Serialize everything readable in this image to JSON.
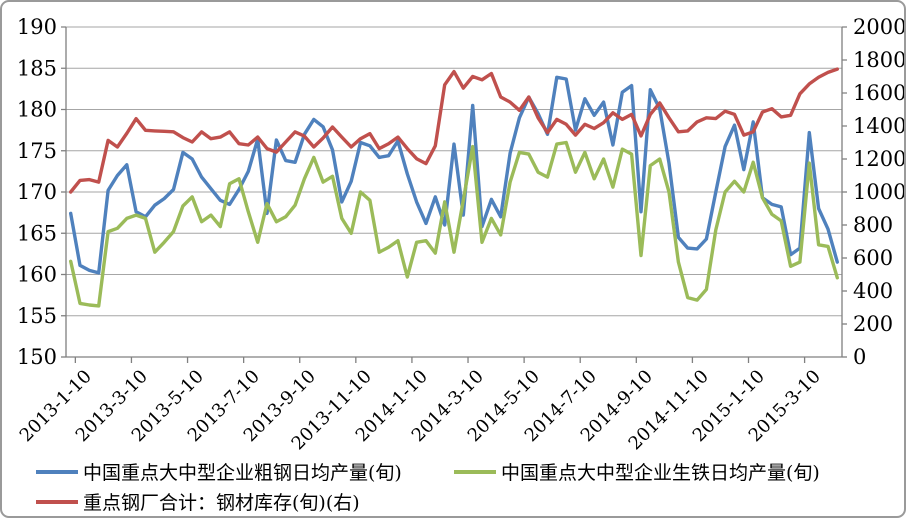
{
  "chart_data": {
    "type": "line",
    "title": "",
    "grid": true,
    "legend_position": "bottom",
    "x_label_interval": 6,
    "left_axis": {
      "min": 150,
      "max": 190,
      "step": 5,
      "ticks": [
        "150",
        "155",
        "160",
        "165",
        "170",
        "175",
        "180",
        "185",
        "190"
      ]
    },
    "right_axis": {
      "min": 0,
      "max": 2000,
      "step": 200,
      "ticks": [
        "0",
        "200",
        "400",
        "600",
        "800",
        "1000",
        "1200",
        "1400",
        "1600",
        "1800",
        "2000"
      ]
    },
    "visible_x_labels": [
      "2013-1-10",
      "2013-3-10",
      "2013-5-10",
      "2013-7-10",
      "2013-9-10",
      "2013-11-10",
      "2014-1-10",
      "2014-3-10",
      "2014-5-10",
      "2014-7-10",
      "2014-9-10",
      "2014-11-10",
      "2015-1-10",
      "2015-3-10"
    ],
    "categories": [
      "2013-1-10",
      "2013-1-20",
      "2013-1-31",
      "2013-2-10",
      "2013-2-20",
      "2013-2-28",
      "2013-3-10",
      "2013-3-20",
      "2013-3-31",
      "2013-4-10",
      "2013-4-20",
      "2013-4-30",
      "2013-5-10",
      "2013-5-20",
      "2013-5-31",
      "2013-6-10",
      "2013-6-20",
      "2013-6-30",
      "2013-7-10",
      "2013-7-20",
      "2013-7-31",
      "2013-8-10",
      "2013-8-20",
      "2013-8-31",
      "2013-9-10",
      "2013-9-20",
      "2013-9-30",
      "2013-10-10",
      "2013-10-20",
      "2013-10-31",
      "2013-11-10",
      "2013-11-20",
      "2013-11-30",
      "2013-12-10",
      "2013-12-20",
      "2013-12-31",
      "2014-1-10",
      "2014-1-20",
      "2014-1-31",
      "2014-2-10",
      "2014-2-20",
      "2014-2-28",
      "2014-3-10",
      "2014-3-20",
      "2014-3-31",
      "2014-4-10",
      "2014-4-20",
      "2014-4-30",
      "2014-5-10",
      "2014-5-20",
      "2014-5-31",
      "2014-6-10",
      "2014-6-20",
      "2014-6-30",
      "2014-7-10",
      "2014-7-20",
      "2014-7-31",
      "2014-8-10",
      "2014-8-20",
      "2014-8-31",
      "2014-9-10",
      "2014-9-20",
      "2014-9-30",
      "2014-10-10",
      "2014-10-20",
      "2014-10-31",
      "2014-11-10",
      "2014-11-20",
      "2014-11-30",
      "2014-12-10",
      "2014-12-20",
      "2014-12-31",
      "2015-1-10",
      "2015-1-20",
      "2015-1-31",
      "2015-2-10",
      "2015-2-20",
      "2015-2-28",
      "2015-3-10",
      "2015-3-20",
      "2015-3-31",
      "2015-4-10",
      "2015-4-20"
    ],
    "series": [
      {
        "name": "中国重点大中型企业粗钢日均产量(旬)",
        "axis": "left",
        "color": "#4F81BD",
        "values": [
          167.4,
          161.1,
          160.5,
          160.2,
          170.2,
          172.0,
          173.3,
          167.6,
          167.0,
          168.4,
          169.2,
          170.3,
          174.8,
          174.0,
          171.8,
          170.4,
          169.0,
          168.5,
          170.3,
          172.5,
          176.4,
          167.4,
          176.3,
          173.8,
          173.6,
          177.0,
          178.8,
          177.9,
          175.1,
          168.8,
          171.3,
          176.0,
          175.6,
          174.2,
          174.4,
          176.2,
          172.2,
          168.8,
          166.2,
          169.4,
          166.0,
          175.8,
          167.2,
          180.5,
          165.8,
          169.1,
          167.0,
          174.7,
          179.0,
          181.5,
          179.5,
          177.0,
          183.9,
          183.7,
          177.5,
          181.3,
          179.3,
          180.9,
          175.7,
          182.1,
          182.9,
          167.6,
          182.4,
          180.1,
          173.5,
          164.5,
          163.2,
          163.1,
          164.3,
          170.0,
          175.5,
          178.1,
          172.7,
          178.5,
          169.3,
          168.5,
          168.2,
          162.4,
          163.2,
          177.2,
          168.0,
          165.5,
          161.5
        ]
      },
      {
        "name": "中国重点大中型企业生铁日均产量(旬)",
        "axis": "left",
        "color": "#9BBB59",
        "values": [
          161.6,
          156.5,
          156.3,
          156.2,
          165.2,
          165.6,
          166.8,
          167.2,
          166.8,
          162.7,
          163.9,
          165.2,
          168.3,
          169.4,
          166.4,
          167.2,
          165.8,
          171.0,
          171.6,
          167.6,
          163.9,
          168.6,
          166.4,
          167.0,
          168.4,
          171.6,
          174.2,
          171.2,
          171.9,
          166.8,
          165.0,
          170.0,
          169.0,
          162.7,
          163.3,
          164.1,
          159.7,
          163.9,
          164.1,
          162.6,
          168.8,
          162.7,
          169.0,
          175.5,
          163.9,
          166.8,
          164.8,
          171.2,
          174.8,
          174.6,
          172.4,
          171.8,
          175.8,
          176.0,
          172.4,
          174.8,
          171.6,
          174.0,
          170.6,
          175.2,
          174.6,
          162.3,
          173.2,
          174.0,
          170.0,
          161.5,
          157.2,
          156.9,
          158.2,
          165.4,
          170.0,
          171.3,
          170.0,
          173.6,
          169.3,
          167.3,
          166.5,
          161.0,
          161.5,
          173.5,
          163.6,
          163.4,
          159.6
        ]
      },
      {
        "name": "重点钢厂合计：钢材库存(旬)(右)",
        "axis": "right",
        "color": "#C0504D",
        "values": [
          1000,
          1070,
          1075,
          1060,
          1313,
          1273,
          1355,
          1444,
          1374,
          1370,
          1368,
          1365,
          1330,
          1303,
          1364,
          1323,
          1333,
          1364,
          1293,
          1285,
          1333,
          1263,
          1242,
          1303,
          1364,
          1339,
          1273,
          1327,
          1394,
          1333,
          1273,
          1323,
          1354,
          1263,
          1293,
          1333,
          1263,
          1202,
          1172,
          1280,
          1650,
          1730,
          1630,
          1700,
          1680,
          1718,
          1576,
          1545,
          1495,
          1576,
          1450,
          1360,
          1440,
          1410,
          1345,
          1410,
          1385,
          1420,
          1480,
          1440,
          1470,
          1340,
          1470,
          1540,
          1450,
          1365,
          1370,
          1425,
          1450,
          1445,
          1490,
          1470,
          1345,
          1365,
          1485,
          1505,
          1455,
          1465,
          1595,
          1655,
          1695,
          1725,
          1745
        ]
      }
    ]
  },
  "legend": {
    "items": [
      {
        "label": "中国重点大中型企业粗钢日均产量(旬)",
        "color": "#4F81BD"
      },
      {
        "label": "中国重点大中型企业生铁日均产量(旬)",
        "color": "#9BBB59"
      },
      {
        "label": "重点钢厂合计：钢材库存(旬)(右)",
        "color": "#C0504D"
      }
    ]
  },
  "style": {
    "gridline_color": "#A6A6A6",
    "axis_color": "#808080",
    "background": "#FFFFFF"
  }
}
